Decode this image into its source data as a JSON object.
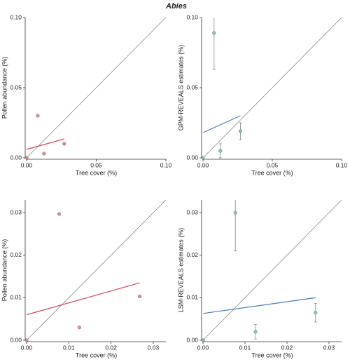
{
  "title": "Abies",
  "chart_data": [
    {
      "type": "scatter",
      "x_label": "Tree cover (%)",
      "y_label": "Pollen abundance (%)",
      "xlim": [
        0,
        0.1
      ],
      "ylim": [
        0,
        0.1
      ],
      "xticks": [
        {
          "value": 0,
          "label": "0.00"
        },
        {
          "value": 0.05,
          "label": "0.05"
        },
        {
          "value": 0.1,
          "label": "0.10"
        }
      ],
      "yticks": [
        {
          "value": 0,
          "label": "0.00"
        },
        {
          "value": 0.05,
          "label": "0.05"
        },
        {
          "value": 0.1,
          "label": "0.10"
        }
      ],
      "x": [
        0,
        0.008,
        0.0125,
        0.027
      ],
      "series": [
        {
          "color": "#e88b8b",
          "values": [
            0,
            0.03,
            0.003,
            0.01
          ]
        }
      ],
      "fit": {
        "color": "#d9465a",
        "x": [
          0,
          0.027
        ],
        "y": [
          0.006,
          0.0135
        ]
      }
    },
    {
      "type": "scatter",
      "x_label": "Tree cover (%)",
      "y_label": "GPM-REVEALS estimates (%)",
      "xlim": [
        0,
        0.1
      ],
      "ylim": [
        0,
        0.1
      ],
      "xticks": [
        {
          "value": 0,
          "label": "0.00"
        },
        {
          "value": 0.05,
          "label": "0.05"
        },
        {
          "value": 0.1,
          "label": "0.10"
        }
      ],
      "yticks": [
        {
          "value": 0,
          "label": "0.00"
        },
        {
          "value": 0.05,
          "label": "0.05"
        },
        {
          "value": 0.1,
          "label": "0.10"
        }
      ],
      "x": [
        0,
        0.008,
        0.0125,
        0.027
      ],
      "series": [
        {
          "color": "#7ecfb3",
          "values": [
            0,
            0.089,
            0.005,
            0.019
          ],
          "errors": [
            0,
            0.026,
            0.005,
            0.006
          ]
        }
      ],
      "fit": {
        "color": "#4a7ab5",
        "x": [
          0,
          0.027
        ],
        "y": [
          0.018,
          0.03
        ]
      }
    },
    {
      "type": "scatter",
      "x_label": "Tree cover (%)",
      "y_label": "Pollen abundance (%)",
      "xlim": [
        0,
        0.033
      ],
      "ylim": [
        0,
        0.033
      ],
      "xticks": [
        {
          "value": 0,
          "label": "0.00"
        },
        {
          "value": 0.01,
          "label": "0.01"
        },
        {
          "value": 0.02,
          "label": "0.02"
        },
        {
          "value": 0.03,
          "label": "0.03"
        }
      ],
      "yticks": [
        {
          "value": 0,
          "label": "0.00"
        },
        {
          "value": 0.01,
          "label": "0.01"
        },
        {
          "value": 0.02,
          "label": "0.02"
        },
        {
          "value": 0.03,
          "label": "0.03"
        }
      ],
      "x": [
        0,
        0.0077,
        0.0125,
        0.0268
      ],
      "series": [
        {
          "color": "#e88b8b",
          "values": [
            0,
            0.0297,
            0.003,
            0.0103
          ]
        }
      ],
      "fit": {
        "color": "#d9465a",
        "x": [
          0,
          0.0268
        ],
        "y": [
          0.006,
          0.0135
        ]
      }
    },
    {
      "type": "scatter",
      "x_label": "Tree cover (%)",
      "y_label": "LSM-REVEALS estimates (%)",
      "xlim": [
        0,
        0.033
      ],
      "ylim": [
        0,
        0.033
      ],
      "xticks": [
        {
          "value": 0,
          "label": "0.00"
        },
        {
          "value": 0.01,
          "label": "0.01"
        },
        {
          "value": 0.02,
          "label": "0.02"
        },
        {
          "value": 0.03,
          "label": "0.03"
        }
      ],
      "yticks": [
        {
          "value": 0,
          "label": "0.00"
        },
        {
          "value": 0.01,
          "label": "0.01"
        },
        {
          "value": 0.02,
          "label": "0.02"
        },
        {
          "value": 0.03,
          "label": "0.03"
        }
      ],
      "x": [
        0,
        0.0077,
        0.0125,
        0.0268
      ],
      "series": [
        {
          "color": "#7ecfb3",
          "values": [
            0,
            0.03,
            0.002,
            0.0065
          ],
          "errors": [
            0,
            0.009,
            0.0017,
            0.0022
          ]
        }
      ],
      "fit": {
        "color": "#4a7ab5",
        "x": [
          0,
          0.0268
        ],
        "y": [
          0.0063,
          0.01
        ]
      }
    }
  ]
}
